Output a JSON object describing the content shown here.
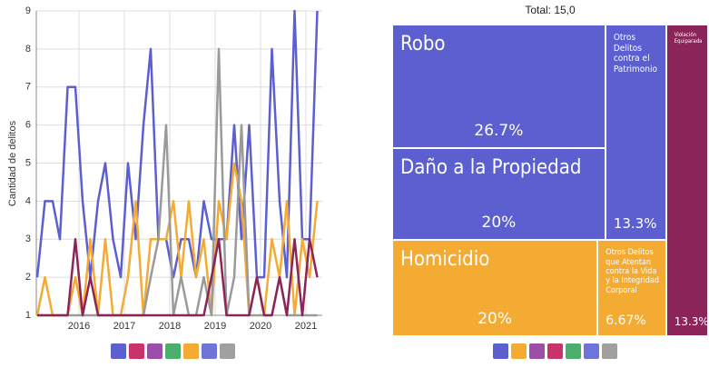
{
  "chart_data": [
    {
      "type": "line",
      "ylabel": "Cantidad de delitos",
      "x": [
        2015.08,
        2015.25,
        2015.42,
        2015.58,
        2015.75,
        2015.92,
        2016.08,
        2016.25,
        2016.42,
        2016.58,
        2016.75,
        2016.92,
        2017.08,
        2017.25,
        2017.42,
        2017.58,
        2017.75,
        2017.92,
        2018.08,
        2018.25,
        2018.42,
        2018.58,
        2018.75,
        2018.92,
        2019.08,
        2019.25,
        2019.42,
        2019.58,
        2019.75,
        2019.92,
        2020.08,
        2020.25,
        2020.42,
        2020.58,
        2020.75,
        2020.92,
        2021.08,
        2021.25
      ],
      "series": [
        {
          "color": "#5b5fcf",
          "values": [
            2,
            4,
            4,
            3,
            7,
            7,
            4,
            2,
            4,
            5,
            3,
            2,
            5,
            3,
            6,
            8,
            3,
            3,
            2,
            3,
            3,
            2,
            4,
            3,
            3,
            3,
            6,
            3,
            6,
            2,
            2,
            8,
            4,
            2,
            9,
            3,
            3,
            9
          ]
        },
        {
          "color": "#f4ab33",
          "values": [
            1,
            2,
            1,
            1,
            1,
            2,
            1,
            3,
            1,
            3,
            1,
            1,
            2,
            4,
            1,
            3,
            3,
            3,
            4,
            2,
            4,
            2,
            3,
            1,
            4,
            3,
            5,
            4,
            1,
            2,
            1,
            3,
            2,
            4,
            1,
            3,
            2,
            4
          ]
        },
        {
          "color": "#9a9a9a",
          "values": [
            1,
            1,
            1,
            1,
            1,
            1,
            1,
            1,
            1,
            1,
            1,
            1,
            1,
            1,
            1,
            2,
            3,
            6,
            1,
            2,
            1,
            1,
            2,
            1,
            8,
            1,
            2,
            6,
            1,
            1,
            1,
            1,
            2,
            1,
            1,
            1,
            1,
            1
          ]
        },
        {
          "color": "#8b2559",
          "values": [
            1,
            1,
            1,
            1,
            1,
            3,
            1,
            2,
            1,
            1,
            1,
            1,
            1,
            1,
            1,
            1,
            1,
            1,
            1,
            1,
            1,
            1,
            1,
            2,
            3,
            1,
            1,
            1,
            1,
            2,
            1,
            1,
            2,
            1,
            3,
            1,
            3,
            2
          ]
        }
      ],
      "xlim": [
        2015.06,
        2021.36
      ],
      "xticks": [
        2016,
        2017,
        2018,
        2019,
        2020,
        2021
      ],
      "ylim": [
        1,
        9
      ],
      "yticks": [
        1,
        2,
        3,
        4,
        5,
        6,
        7,
        8,
        9
      ],
      "grid": true
    },
    {
      "type": "treemap",
      "title": "Total: 15,0",
      "labels": [
        "Robo",
        "Daño a la Propiedad",
        "Otros Delitos contra el Patrimonio",
        "Homicidio",
        "Otros Delitos que Atentan contra la Vida y la Integridad Corporal",
        "Violación Equiparada"
      ],
      "values": [
        26.7,
        20,
        13.3,
        20,
        6.67,
        13.3
      ],
      "value_labels": [
        "26.7%",
        "20%",
        "13.3%",
        "20%",
        "6.67%",
        "13.3%"
      ],
      "colors": [
        "#5b5fcf",
        "#5b5fcf",
        "#5b5fcf",
        "#f4ab33",
        "#f4ab33",
        "#8b2559"
      ]
    }
  ]
}
